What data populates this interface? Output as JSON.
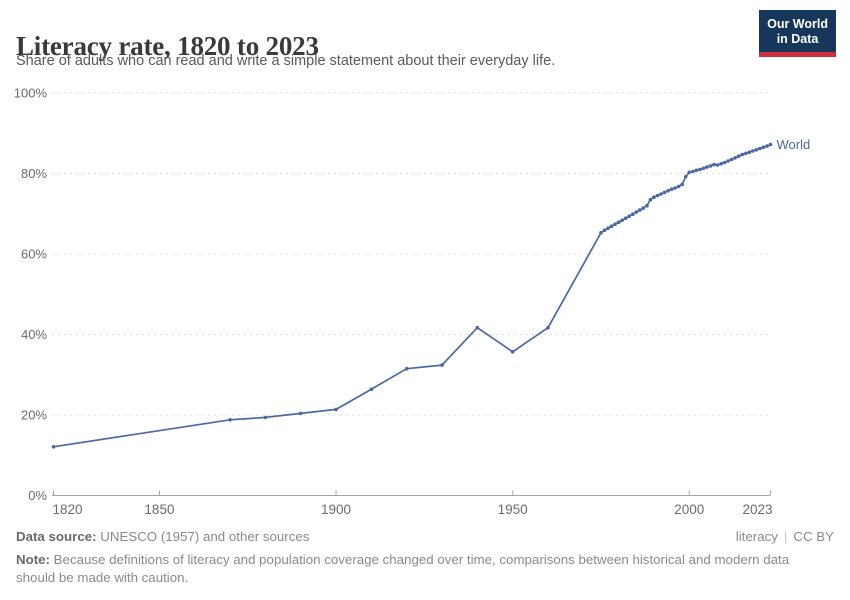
{
  "header": {
    "title": "Literacy rate, 1820 to 2023",
    "subtitle": "Share of adults who can read and write a simple statement about their everyday life."
  },
  "logo": {
    "line1": "Our World",
    "line2": "in Data",
    "bg_color": "#16365c",
    "accent_color": "#cd2d3c"
  },
  "chart_data": {
    "type": "line",
    "title": "Literacy rate, 1820 to 2023",
    "xlabel": "",
    "ylabel": "",
    "xlim": [
      1820,
      2023
    ],
    "ylim": [
      0,
      100
    ],
    "grid": "horizontal-dashed",
    "legend": "end-of-line-label",
    "grid_color": "#dcdcdc",
    "axis_color": "#a5a5a5",
    "tick_label_color": "#6b6b6b",
    "x_ticks": [
      1820,
      1850,
      1900,
      1950,
      2000,
      2023
    ],
    "y_ticks": [
      {
        "value": 0,
        "label": "0%"
      },
      {
        "value": 20,
        "label": "20%"
      },
      {
        "value": 40,
        "label": "40%"
      },
      {
        "value": 60,
        "label": "60%"
      },
      {
        "value": 80,
        "label": "80%"
      },
      {
        "value": 100,
        "label": "100%"
      }
    ],
    "series": [
      {
        "name": "World",
        "color": "#4a69a2",
        "points": [
          [
            1820,
            12.1
          ],
          [
            1870,
            18.8
          ],
          [
            1880,
            19.4
          ],
          [
            1890,
            20.4
          ],
          [
            1900,
            21.4
          ],
          [
            1910,
            26.4
          ],
          [
            1920,
            31.5
          ],
          [
            1930,
            32.4
          ],
          [
            1940,
            41.7
          ],
          [
            1950,
            35.7
          ],
          [
            1960,
            41.7
          ],
          [
            1975,
            65.3
          ],
          [
            1976,
            65.9
          ],
          [
            1977,
            66.4
          ],
          [
            1978,
            66.9
          ],
          [
            1979,
            67.4
          ],
          [
            1980,
            67.9
          ],
          [
            1981,
            68.4
          ],
          [
            1982,
            68.9
          ],
          [
            1983,
            69.4
          ],
          [
            1984,
            69.9
          ],
          [
            1985,
            70.4
          ],
          [
            1986,
            70.9
          ],
          [
            1987,
            71.4
          ],
          [
            1988,
            72.0
          ],
          [
            1989,
            73.5
          ],
          [
            1990,
            74.1
          ],
          [
            1991,
            74.5
          ],
          [
            1992,
            74.9
          ],
          [
            1993,
            75.3
          ],
          [
            1994,
            75.7
          ],
          [
            1995,
            76.1
          ],
          [
            1996,
            76.4
          ],
          [
            1997,
            76.8
          ],
          [
            1998,
            77.3
          ],
          [
            1999,
            79.2
          ],
          [
            2000,
            80.3
          ],
          [
            2001,
            80.5
          ],
          [
            2002,
            80.8
          ],
          [
            2003,
            81.0
          ],
          [
            2004,
            81.3
          ],
          [
            2005,
            81.6
          ],
          [
            2006,
            81.9
          ],
          [
            2007,
            82.2
          ],
          [
            2008,
            82.1
          ],
          [
            2009,
            82.4
          ],
          [
            2010,
            82.7
          ],
          [
            2011,
            83.1
          ],
          [
            2012,
            83.5
          ],
          [
            2013,
            83.9
          ],
          [
            2014,
            84.3
          ],
          [
            2015,
            84.7
          ],
          [
            2016,
            85.0
          ],
          [
            2017,
            85.3
          ],
          [
            2018,
            85.6
          ],
          [
            2019,
            85.9
          ],
          [
            2020,
            86.2
          ],
          [
            2021,
            86.5
          ],
          [
            2022,
            86.8
          ],
          [
            2023,
            87.2
          ]
        ]
      }
    ]
  },
  "footer": {
    "datasource_label": "Data source:",
    "datasource_text": " UNESCO (1957) and other sources",
    "license_name": "literacy",
    "license_sep": "|",
    "license_cc": "CC BY",
    "note_label": "Note:",
    "note_text": " Because definitions of literacy and population coverage changed over time, comparisons between historical and modern data should be made with caution."
  }
}
